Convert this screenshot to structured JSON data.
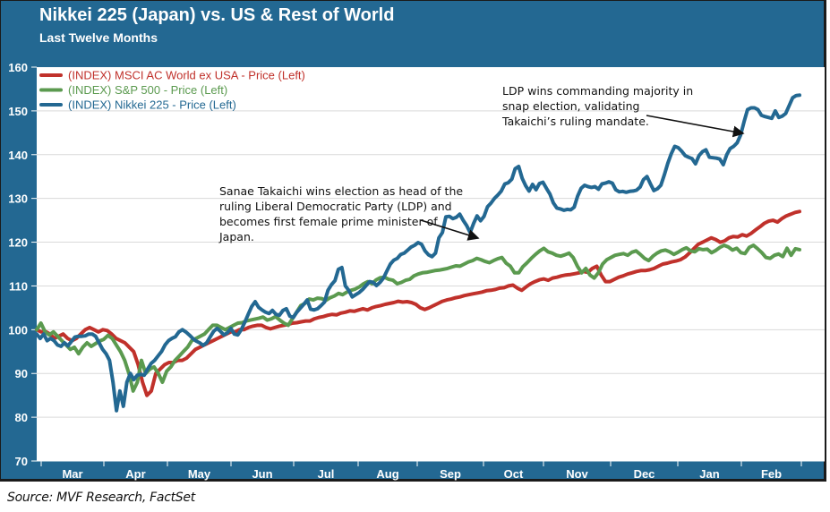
{
  "header": {
    "title": "Nikkei 225 (Japan) vs. US & Rest of World",
    "subtitle": "Last Twelve Months"
  },
  "footer": {
    "source": "Source: MVF Research, FactSet"
  },
  "chart_data": {
    "type": "line",
    "title": "Nikkei 225 (Japan) vs. US & Rest of World",
    "subtitle": "Last Twelve Months",
    "xlabel": "",
    "ylabel": "",
    "ylim": [
      70,
      160
    ],
    "yticks": [
      70,
      80,
      90,
      100,
      110,
      120,
      130,
      140,
      150,
      160
    ],
    "xticks": [
      "Mar",
      "Apr",
      "May",
      "Jun",
      "Jul",
      "Aug",
      "Sep",
      "Oct",
      "Nov",
      "Dec",
      "Jan",
      "Feb"
    ],
    "grid": true,
    "legend_position": "top-left",
    "x_range_months": [
      0,
      11.95
    ],
    "series": [
      {
        "name": "(INDEX) MSCI AC World ex USA - Price (Left)",
        "color": "#c0312b",
        "values": [
          100,
          99.5,
          99.6,
          99,
          98,
          98.5,
          99,
          98,
          97.5,
          98,
          99,
          100,
          100.5,
          100,
          99.5,
          100,
          99.8,
          99,
          98,
          97.5,
          97,
          96,
          95,
          92,
          88,
          85,
          86,
          90,
          91,
          92,
          92.5,
          92.5,
          93,
          93,
          93.5,
          94.5,
          95.5,
          96,
          96.5,
          97,
          97.5,
          98,
          98.5,
          99,
          99.5,
          99.5,
          100,
          100,
          100.5,
          100.8,
          101,
          101,
          100.5,
          100.2,
          100.5,
          100.8,
          101,
          101.2,
          101.5,
          101.6,
          101.8,
          102,
          102,
          102.5,
          102.8,
          103,
          103.3,
          103.5,
          103.4,
          103.8,
          104,
          104.3,
          104.2,
          104.5,
          104.8,
          104.5,
          105,
          105.3,
          105.5,
          105.8,
          106,
          106.2,
          106.5,
          106.3,
          106.4,
          106.2,
          105.8,
          105,
          104.6,
          105,
          105.5,
          106,
          106.5,
          106.8,
          107,
          107.3,
          107.5,
          107.8,
          108,
          108.2,
          108.4,
          108.6,
          108.9,
          109,
          109.2,
          109.5,
          109.6,
          110,
          110.2,
          109.5,
          109,
          109.8,
          110.5,
          111,
          111.4,
          111.6,
          111.3,
          111.8,
          112,
          112.3,
          112.5,
          112.6,
          112.8,
          113,
          113.3,
          113.1,
          114,
          114.5,
          112.5,
          111,
          111,
          111.5,
          112,
          112.3,
          112.7,
          113,
          113.3,
          113.5,
          113.5,
          113.7,
          114,
          114.5,
          115,
          115.2,
          115.5,
          115.7,
          116,
          116.6,
          117.5,
          118.5,
          119.5,
          120,
          120.5,
          121,
          120.6,
          120,
          120.3,
          121,
          121.3,
          121.2,
          121.7,
          121.4,
          122,
          122.8,
          123.5,
          124.3,
          124.8,
          125,
          124.6,
          125.4,
          126,
          126.4,
          126.8,
          127
        ]
      },
      {
        "name": "(INDEX) S&P 500 - Price (Left)",
        "color": "#5b9a4f",
        "values": [
          100,
          101.5,
          99.5,
          98.8,
          99.5,
          98.5,
          97.5,
          96.5,
          95.5,
          96,
          94.5,
          96,
          97,
          96.2,
          96.8,
          97.4,
          97.8,
          98.7,
          98,
          96.5,
          95,
          93,
          90,
          86,
          88,
          93,
          90,
          91,
          91.5,
          90,
          88,
          90.5,
          91.5,
          93,
          94,
          95,
          96,
          97.5,
          98,
          98.5,
          99,
          100,
          101,
          101,
          100.5,
          100,
          100.5,
          101,
          101.5,
          101.6,
          102,
          102.2,
          102.4,
          102.6,
          102.9,
          102.2,
          102.5,
          103,
          102.2,
          101.5,
          101,
          102.5,
          104,
          105.5,
          106,
          107,
          106.8,
          107.2,
          107.1,
          106.7,
          107.3,
          107.7,
          108.3,
          108,
          108.6,
          109,
          109.3,
          109.8,
          110.5,
          111,
          110.5,
          111.4,
          111.9,
          112,
          111.5,
          111.3,
          110.5,
          110.8,
          111.3,
          111.5,
          112.3,
          112.7,
          113,
          113.1,
          113.3,
          113.5,
          113.6,
          113.8,
          114,
          114.3,
          114.6,
          114.5,
          115,
          115.5,
          115.8,
          116.3,
          116,
          115.6,
          115.3,
          115.8,
          116.2,
          116.5,
          115.2,
          114.5,
          113,
          113,
          114.4,
          115.3,
          116.3,
          117.2,
          118,
          118.6,
          117.8,
          117.5,
          117,
          116.8,
          117.1,
          117.5,
          116.5,
          114.5,
          113,
          114,
          112.5,
          111.8,
          113,
          115,
          116,
          116.5,
          117,
          117.2,
          117.4,
          117,
          117.7,
          118,
          117.2,
          116.3,
          115.8,
          116.8,
          117.5,
          118,
          118.2,
          117.8,
          117.2,
          117.7,
          118.3,
          118.7,
          118,
          117.8,
          118.5,
          118.3,
          118.4,
          117.6,
          118.1,
          118.8,
          119.3,
          118.9,
          118.2,
          118.6,
          117.6,
          117.4,
          118.8,
          119.3,
          118.5,
          117.6,
          116.5,
          116.3,
          117,
          117.3,
          116.7,
          118.6,
          117,
          118.5,
          118.3
        ]
      },
      {
        "name": "(INDEX) Nikkei 225 - Price (Left)",
        "color": "#236892",
        "values": [
          99,
          98,
          99,
          97.5,
          98,
          97.5,
          96.5,
          96.2,
          97,
          96.3,
          97.3,
          98.3,
          98.5,
          98.5,
          98.6,
          99,
          99,
          98.5,
          97,
          95.5,
          94.5,
          93,
          88,
          81.5,
          86,
          82.5,
          88,
          90,
          88.6,
          89.6,
          89.8,
          89.6,
          91,
          92.3,
          93,
          94,
          95,
          96.5,
          97.5,
          98,
          98.4,
          99.5,
          100,
          99.5,
          98.8,
          98,
          97.4,
          97,
          96.4,
          97,
          98.3,
          99.6,
          100.3,
          99.6,
          98.8,
          99.3,
          100.3,
          99,
          98.8,
          100,
          101.7,
          103.5,
          105.3,
          106.4,
          105.1,
          104.5,
          104,
          103.7,
          104.4,
          103.5,
          103.3,
          104.4,
          104.8,
          103.1,
          102.8,
          104,
          104.9,
          105.8,
          106.8,
          104.7,
          104.5,
          104.8,
          105.5,
          106.3,
          109,
          110.3,
          111.2,
          113.8,
          114.2,
          110,
          109,
          107.5,
          108,
          108.5,
          109.2,
          110.1,
          111,
          110.8,
          110.1,
          110.8,
          111.8,
          113.4,
          115,
          115.9,
          116.3,
          117.2,
          117.5,
          118.2,
          118.9,
          119.3,
          119.9,
          119.5,
          118,
          117.1,
          116.7,
          117.5,
          121,
          122.2,
          125.8,
          125.9,
          125.4,
          125.7,
          126.4,
          125,
          123.8,
          122.2,
          124.3,
          126,
          124.9,
          125.9,
          128.1,
          128.9,
          130,
          130.8,
          131.7,
          133.3,
          133.6,
          134.4,
          136.8,
          137.3,
          134.6,
          132.9,
          131.7,
          133.2,
          132,
          133.4,
          133.7,
          132.3,
          131,
          129,
          127.8,
          127.6,
          127.3,
          127.5,
          127.4,
          128,
          130.5,
          132.3,
          133,
          132.7,
          132.5,
          132.7,
          132.1,
          133.3,
          133.5,
          133.8,
          133.5,
          132,
          131.5,
          131.6,
          131.4,
          131.6,
          131.7,
          131.9,
          132.6,
          134.3,
          135,
          133.3,
          131.8,
          132.2,
          133,
          135.4,
          138,
          140.2,
          141.9,
          141.6,
          140.8,
          139.8,
          139.4,
          139.1,
          137.9,
          139.8,
          140.7,
          141.1,
          139.4,
          139.3,
          139.2,
          139,
          137.7,
          140,
          141.4,
          141.9,
          142.7,
          144.5,
          147.5,
          150.3,
          150.7,
          150.7,
          150.3,
          149,
          148.7,
          148.5,
          148.3,
          150,
          148.5,
          148.8,
          149.4,
          151.2,
          153,
          153.5,
          153.6
        ]
      }
    ],
    "annotations": [
      {
        "text_lines": [
          "Sanae Takaichi wins election as head of the",
          "ruling Liberal Democratic Party (LDP) and",
          "becomes first female prime minister of",
          "Japan."
        ],
        "points_to": {
          "month_index": 6.9,
          "value": 119.8
        }
      },
      {
        "text_lines": [
          "LDP wins commanding majority in",
          "snap election, validating",
          "Takaichi’s ruling mandate."
        ],
        "points_to": {
          "month_index": 11.0,
          "value": 144.5
        }
      }
    ]
  }
}
